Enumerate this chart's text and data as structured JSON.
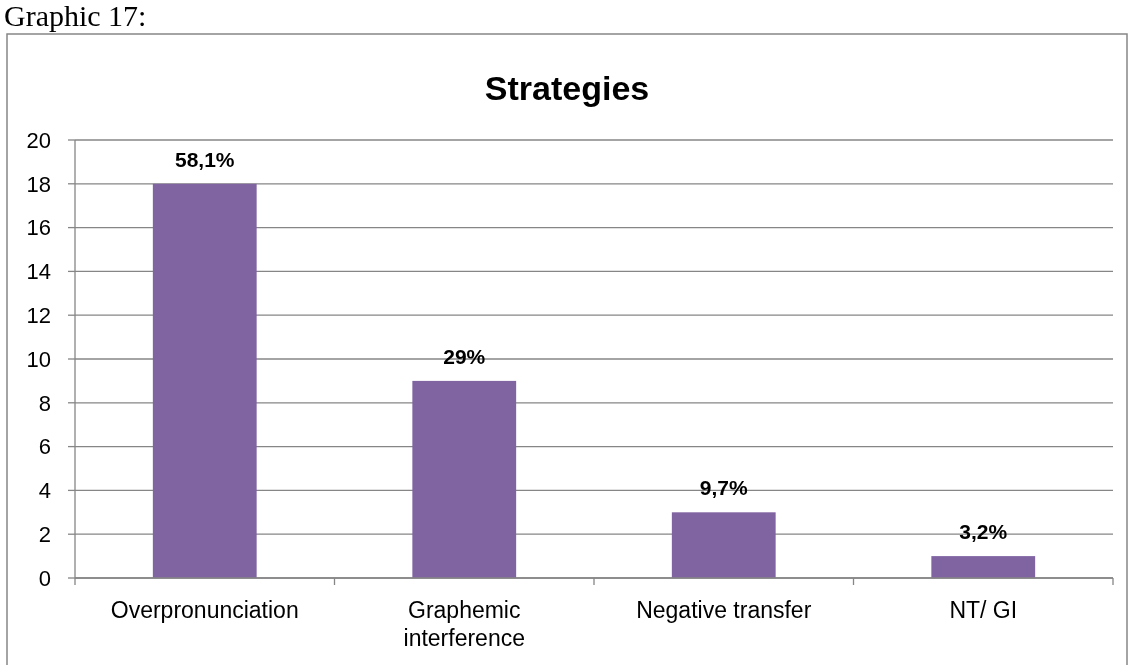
{
  "chart_data": {
    "type": "bar",
    "title": "Strategies",
    "categories": [
      "Overpronunciation",
      "Graphemic interference",
      "Negative transfer",
      "NT/ GI"
    ],
    "values": [
      18,
      9,
      3,
      1
    ],
    "color": "#8064a2",
    "ylim": [
      0,
      20
    ],
    "yticks": [
      0,
      2,
      4,
      6,
      8,
      10,
      12,
      14,
      16,
      18,
      20
    ],
    "grid": "y",
    "annotations": [
      "Graphic 17:",
      {
        "text": "58,1%",
        "x": "Overpronunciation",
        "y": 18
      },
      {
        "text": "29%",
        "x": "Graphemic interference",
        "y": 9
      },
      {
        "text": "9,7%",
        "x": "Negative transfer",
        "y": 3
      },
      {
        "text": "3,2%",
        "x": "NT/ GI",
        "y": 1
      }
    ]
  }
}
